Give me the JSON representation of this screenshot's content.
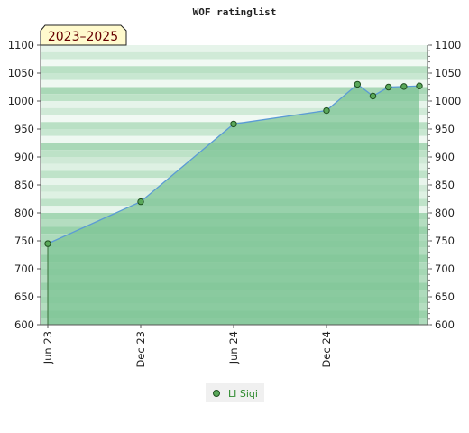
{
  "chart_data": {
    "type": "area",
    "title": "WOF ratinglist",
    "badge": "2023–2025",
    "ylim": [
      600,
      1100
    ],
    "y_ticks": [
      600,
      650,
      700,
      750,
      800,
      850,
      900,
      950,
      1000,
      1050,
      1100
    ],
    "x_ticks": [
      {
        "label": "Jun 23",
        "date": "2023-06"
      },
      {
        "label": "Dec 23",
        "date": "2023-12"
      },
      {
        "label": "Jun 24",
        "date": "2024-06"
      },
      {
        "label": "Dec 24",
        "date": "2024-12"
      }
    ],
    "series": [
      {
        "name": "LI Siqi",
        "points": [
          {
            "date": "2023-06",
            "value": 745
          },
          {
            "date": "2023-12",
            "value": 820
          },
          {
            "date": "2024-06",
            "value": 959
          },
          {
            "date": "2024-12",
            "value": 983
          },
          {
            "date": "2025-02",
            "value": 1030
          },
          {
            "date": "2025-03",
            "value": 1009
          },
          {
            "date": "2025-04",
            "value": 1025
          },
          {
            "date": "2025-05",
            "value": 1026
          },
          {
            "date": "2025-06",
            "value": 1027
          }
        ]
      }
    ],
    "grid": true,
    "legend": "bottom-center",
    "colors": {
      "line": "#5b9bd5",
      "area": "#7dc495",
      "marker_fill": "#5aa85a",
      "marker_stroke": "#1f4f1f",
      "badge_bg": "#fffacd",
      "band_light": "#d4ecd9",
      "band_dark": "#96d0a8"
    }
  }
}
